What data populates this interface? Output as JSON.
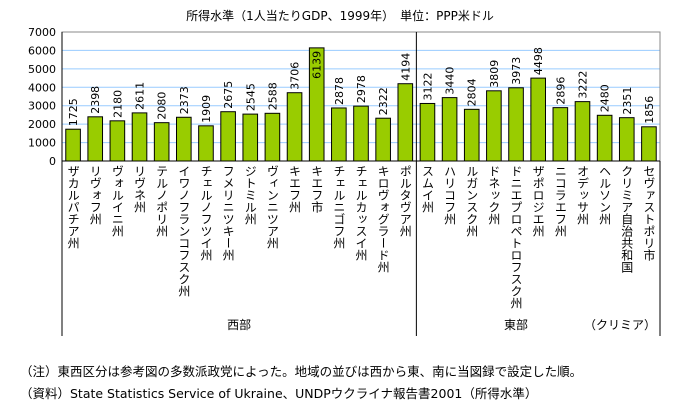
{
  "chart_data": {
    "type": "bar",
    "title": "所得水準（1人当たりGDP、1999年）　単位：PPP米ドル",
    "ylim": [
      0,
      7000
    ],
    "yticks": [
      0,
      1000,
      2000,
      3000,
      4000,
      5000,
      6000,
      7000
    ],
    "grid": true,
    "bar_color": "#99cc00",
    "gridline_color": "#99ccff",
    "categories": [
      "ザカルパチア州",
      "リヴォフ州",
      "ヴォルイニ州",
      "リヴネ州",
      "テルノポリ州",
      "イワノフランコフスク州",
      "チェルノフツイ州",
      "フメリニツキー州",
      "ジトミル州",
      "ヴィンニツア州",
      "キエフ州",
      "キエフ市",
      "チェルニゴフ州",
      "チェルカッスイ州",
      "キロヴォグラード州",
      "ポルタヴア州",
      "スムイ州",
      "ハリコフ州",
      "ルガンスク州",
      "ドネック州",
      "ドニエプロペトロフスク州",
      "ザポロジエ州",
      "ニコラエフ州",
      "オデッサ州",
      "ヘルソン州",
      "クリミア自治共和国",
      "セヴァストポリ市"
    ],
    "values": [
      1725,
      2398,
      2180,
      2611,
      2080,
      2373,
      1909,
      2675,
      2545,
      2588,
      3706,
      6139,
      2878,
      2978,
      2322,
      4194,
      3122,
      3440,
      2804,
      3809,
      3973,
      4498,
      2896,
      3222,
      2480,
      2351,
      1856
    ],
    "groups": [
      {
        "label": "西部",
        "count": 16
      },
      {
        "label": "東部",
        "count": 9
      },
      {
        "label": "（クリミア）",
        "count": 2
      }
    ]
  },
  "notes": [
    "（注）東西区分は参考図の多数派政党によった。地域の並びは西から東、南に当図録で設定した順。",
    "（資料）State Statistics Service of Ukraine、UNDPウクライナ報告書2001（所得水準）"
  ]
}
